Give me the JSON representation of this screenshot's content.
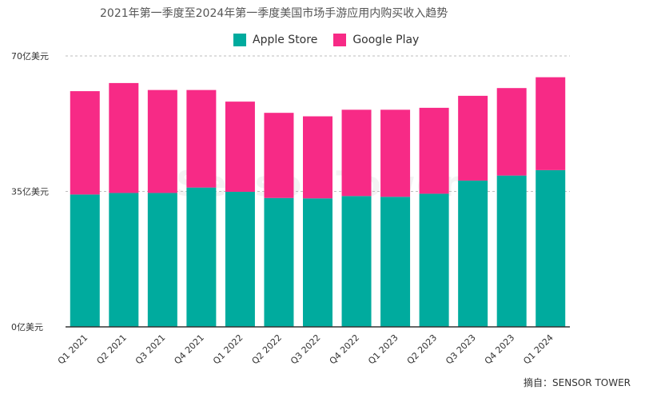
{
  "chart_data": {
    "type": "bar",
    "stacked": true,
    "title": "2021年第一季度至2024年第一季度美国市场手游应用内购买收入趋势",
    "categories": [
      "Q1 2021",
      "Q2 2021",
      "Q3 2021",
      "Q4 2021",
      "Q1 2022",
      "Q2 2022",
      "Q3 2022",
      "Q4 2022",
      "Q1 2023",
      "Q2 2023",
      "Q3 2023",
      "Q4 2023",
      "Q1 2024"
    ],
    "series": [
      {
        "name": "Apple Store",
        "color": "#00ab9e",
        "values": [
          34.2,
          34.6,
          34.6,
          36.0,
          34.9,
          33.3,
          33.2,
          33.8,
          33.6,
          34.4,
          37.8,
          39.1,
          40.5
        ]
      },
      {
        "name": "Google Play",
        "color": "#f72a86",
        "values": [
          26.7,
          28.4,
          26.6,
          25.2,
          23.3,
          22.0,
          21.2,
          22.3,
          22.5,
          22.2,
          21.9,
          22.6,
          24.0
        ]
      }
    ],
    "yticks": [
      {
        "value": 0,
        "label": "0亿美元"
      },
      {
        "value": 35,
        "label": "35亿美元"
      },
      {
        "value": 70,
        "label": "70亿美元"
      }
    ],
    "ylim": [
      0,
      70
    ],
    "grid": true,
    "legend_position": "top-center"
  },
  "watermark": "Sensor Tower",
  "source": "摘自：SENSOR TOWER"
}
